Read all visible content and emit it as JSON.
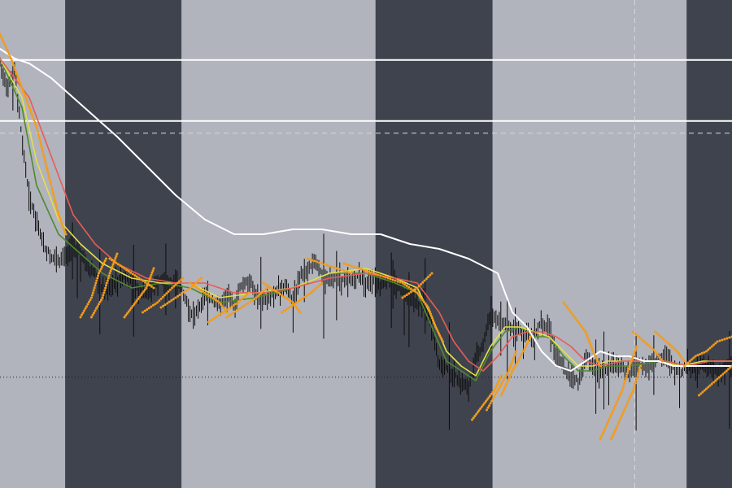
{
  "colors": {
    "band_light": "#b1b3bd",
    "band_dark": "#3f434e",
    "candle": "#0b0b0b",
    "ma_green": "#4f8a2b",
    "ma_yellow": "#e3e04a",
    "ma_red": "#ea5b56",
    "ma_white": "#ffffff",
    "sar_orange": "#f39c1b",
    "level_white": "#ffffff",
    "grid_dashed": "#d8dae0",
    "dotted_level": "#1a1a1a"
  },
  "chart_data": {
    "type": "line",
    "title": "",
    "xlabel": "",
    "ylabel": "",
    "xlim": [
      0,
      100
    ],
    "ylim": [
      0,
      100
    ],
    "grid": false,
    "session_bands": [
      {
        "start": 0,
        "end": 8.9,
        "shade": "light"
      },
      {
        "start": 8.9,
        "end": 24.8,
        "shade": "dark"
      },
      {
        "start": 24.8,
        "end": 51.3,
        "shade": "light"
      },
      {
        "start": 51.3,
        "end": 67.3,
        "shade": "dark"
      },
      {
        "start": 67.3,
        "end": 93.8,
        "shade": "light"
      },
      {
        "start": 93.8,
        "end": 100,
        "shade": "dark"
      }
    ],
    "levels": [
      {
        "y": 87.7,
        "style": "solid"
      },
      {
        "y": 75.2,
        "style": "solid"
      },
      {
        "y": 72.7,
        "style": "dashed"
      },
      {
        "y": 22.7,
        "style": "dotted"
      }
    ],
    "vertical_markers": [
      86.7
    ],
    "price": {
      "x": [
        0,
        1,
        2,
        3,
        4,
        5,
        6,
        7,
        8,
        9,
        10,
        11,
        12,
        13,
        14,
        15,
        16,
        17,
        18,
        19,
        20,
        21,
        22,
        23,
        24,
        25,
        26,
        27,
        28,
        29,
        30,
        31,
        32,
        33,
        34,
        35,
        36,
        37,
        38,
        39,
        40,
        41,
        42,
        43,
        44,
        45,
        46,
        47,
        48,
        49,
        50,
        51,
        52,
        53,
        54,
        55,
        56,
        57,
        58,
        59,
        60,
        61,
        62,
        63,
        64,
        65,
        66,
        67,
        68,
        69,
        70,
        71,
        72,
        73,
        74,
        75,
        76,
        77,
        78,
        79,
        80,
        81,
        82,
        83,
        84,
        85,
        86,
        87,
        88,
        89,
        90,
        91,
        92,
        93,
        94,
        95,
        96,
        97,
        98,
        99,
        100
      ],
      "y": [
        88,
        82,
        86,
        72,
        60,
        55,
        50,
        48,
        47,
        48,
        50,
        49,
        46,
        44,
        41,
        42,
        43,
        44,
        43,
        41,
        40,
        42,
        43,
        42,
        43,
        41,
        36,
        37,
        40,
        39,
        38,
        40,
        38,
        42,
        43,
        40,
        39,
        40,
        41,
        42,
        39,
        44,
        45,
        47,
        44,
        43,
        44,
        43,
        43,
        44,
        43,
        43,
        42,
        43,
        42,
        41,
        40,
        38,
        39,
        33,
        26,
        25,
        24,
        22,
        21,
        27,
        30,
        36,
        35,
        34,
        33,
        33,
        32,
        31,
        35,
        33,
        28,
        25,
        24,
        22,
        27,
        26,
        24,
        25,
        26,
        25,
        24,
        26,
        25,
        26,
        27,
        28,
        25,
        24,
        26,
        24,
        26,
        25,
        24,
        25,
        26
      ]
    },
    "series": [
      {
        "key": "ma_green",
        "x": [
          0,
          3,
          5,
          8,
          11,
          14,
          18,
          22,
          26,
          30,
          35,
          40,
          45,
          50,
          54,
          57,
          59,
          61,
          63,
          65,
          67,
          69,
          71,
          73,
          75,
          77,
          79,
          81,
          83,
          86,
          90,
          93,
          96,
          100
        ],
        "y": [
          88,
          78,
          62,
          52,
          48,
          44,
          41,
          42,
          41,
          38,
          39,
          41,
          44,
          44,
          42,
          40,
          33,
          26,
          24,
          22,
          28,
          32,
          33,
          31,
          31,
          27,
          24,
          24,
          25,
          25,
          26,
          25,
          26,
          26
        ]
      },
      {
        "key": "ma_yellow",
        "x": [
          0,
          3,
          5,
          8,
          11,
          14,
          18,
          22,
          26,
          30,
          35,
          40,
          45,
          50,
          54,
          57,
          59,
          61,
          63,
          65,
          67,
          69,
          71,
          73,
          75,
          77,
          79,
          81,
          83,
          86,
          90,
          93,
          96,
          100
        ],
        "y": [
          88,
          80,
          67,
          55,
          50,
          46,
          43,
          42,
          42,
          39,
          40,
          41,
          44,
          45,
          43,
          41,
          35,
          28,
          25,
          23,
          29,
          33,
          33,
          32,
          31,
          28,
          25,
          25,
          26,
          26,
          26,
          25,
          26,
          26
        ]
      },
      {
        "key": "ma_red",
        "x": [
          0,
          4,
          7,
          10,
          13,
          16,
          20,
          24,
          28,
          32,
          36,
          40,
          45,
          50,
          54,
          57,
          60,
          62,
          64,
          66,
          68,
          70,
          72,
          74,
          76,
          78,
          80,
          82,
          85,
          88,
          91,
          94,
          97,
          100
        ],
        "y": [
          88,
          80,
          68,
          56,
          50,
          46,
          43,
          42,
          42,
          40,
          40,
          41,
          43,
          44,
          43,
          42,
          36,
          30,
          26,
          24,
          27,
          31,
          32,
          32,
          31,
          29,
          26,
          25,
          26,
          26,
          26,
          25,
          26,
          26
        ]
      },
      {
        "key": "ma_white",
        "x": [
          0,
          2,
          4,
          7,
          10,
          13,
          16,
          20,
          24,
          28,
          32,
          36,
          40,
          44,
          48,
          52,
          56,
          60,
          64,
          68,
          70,
          72,
          74,
          76,
          78,
          80,
          82,
          84,
          86,
          88,
          90,
          92,
          94,
          96,
          98,
          100
        ],
        "y": [
          90,
          88,
          87,
          84,
          80,
          76,
          72,
          66,
          60,
          55,
          52,
          52,
          53,
          53,
          52,
          52,
          50,
          49,
          47,
          44,
          36,
          33,
          28,
          25,
          24,
          26,
          28,
          27,
          27,
          26,
          26,
          25,
          25,
          25,
          25,
          25
        ]
      }
    ],
    "sar_arcs": [
      [
        [
          0,
          93
        ],
        [
          1.5,
          88
        ],
        [
          3,
          82
        ],
        [
          5,
          74
        ],
        [
          6,
          68
        ],
        [
          7,
          62
        ],
        [
          8,
          56
        ],
        [
          9,
          52
        ]
      ],
      [
        [
          11,
          35
        ],
        [
          12.5,
          39
        ],
        [
          13.5,
          44
        ],
        [
          14.5,
          47
        ]
      ],
      [
        [
          12.5,
          35
        ],
        [
          14,
          39
        ],
        [
          15,
          44
        ],
        [
          16,
          48
        ]
      ],
      [
        [
          15,
          47
        ],
        [
          17,
          45
        ],
        [
          19,
          43
        ],
        [
          21,
          41
        ]
      ],
      [
        [
          17,
          35
        ],
        [
          18.5,
          38
        ],
        [
          20,
          41
        ],
        [
          21,
          45
        ]
      ],
      [
        [
          19.5,
          36
        ],
        [
          21.5,
          38
        ],
        [
          23.5,
          41
        ],
        [
          25,
          43
        ]
      ],
      [
        [
          22,
          37
        ],
        [
          24,
          39
        ],
        [
          26,
          41
        ],
        [
          27.5,
          43
        ]
      ],
      [
        [
          26,
          42
        ],
        [
          28,
          40
        ],
        [
          30,
          38
        ],
        [
          31,
          36
        ]
      ],
      [
        [
          28.5,
          34
        ],
        [
          30.5,
          36
        ],
        [
          32.5,
          38
        ],
        [
          34,
          40
        ]
      ],
      [
        [
          31,
          35
        ],
        [
          33,
          37
        ],
        [
          35,
          39
        ],
        [
          36.5,
          41
        ]
      ],
      [
        [
          36,
          42
        ],
        [
          38,
          40
        ],
        [
          40,
          38
        ],
        [
          41,
          36
        ]
      ],
      [
        [
          38.5,
          36
        ],
        [
          40.5,
          38
        ],
        [
          42.5,
          40
        ],
        [
          44,
          42
        ]
      ],
      [
        [
          42,
          47
        ],
        [
          44,
          46
        ],
        [
          46,
          45
        ],
        [
          48,
          44
        ]
      ],
      [
        [
          47,
          46
        ],
        [
          49,
          45
        ],
        [
          51,
          44
        ],
        [
          53,
          43
        ],
        [
          55,
          42
        ],
        [
          57,
          40
        ],
        [
          58.5,
          37
        ],
        [
          59.5,
          33
        ],
        [
          60.5,
          30
        ]
      ],
      [
        [
          55,
          39
        ],
        [
          57,
          41
        ],
        [
          59,
          44
        ]
      ],
      [
        [
          64.5,
          14
        ],
        [
          66,
          17
        ],
        [
          67.5,
          20
        ],
        [
          68.5,
          23
        ]
      ],
      [
        [
          66.5,
          16
        ],
        [
          68,
          20
        ],
        [
          69.5,
          24
        ],
        [
          70.5,
          28
        ]
      ],
      [
        [
          68.5,
          19
        ],
        [
          70,
          24
        ],
        [
          71.5,
          28
        ],
        [
          72.5,
          31
        ]
      ],
      [
        [
          77,
          38
        ],
        [
          78.5,
          35
        ],
        [
          80,
          32
        ],
        [
          81,
          28
        ],
        [
          82,
          25
        ]
      ],
      [
        [
          82,
          10
        ],
        [
          83.5,
          15
        ],
        [
          85,
          20
        ],
        [
          86,
          25
        ],
        [
          87,
          29
        ]
      ],
      [
        [
          83.5,
          10
        ],
        [
          85,
          15
        ],
        [
          86.5,
          20
        ],
        [
          87.5,
          25
        ]
      ],
      [
        [
          86.5,
          32
        ],
        [
          88,
          30
        ],
        [
          89.5,
          28
        ],
        [
          90.5,
          26
        ]
      ],
      [
        [
          89.5,
          32
        ],
        [
          91,
          30
        ],
        [
          92.5,
          28
        ],
        [
          93.5,
          26
        ]
      ],
      [
        [
          93.5,
          25
        ],
        [
          95,
          27
        ],
        [
          96.5,
          28
        ],
        [
          98,
          30
        ],
        [
          100,
          31
        ]
      ],
      [
        [
          95.5,
          19
        ],
        [
          97,
          21
        ],
        [
          98.5,
          23
        ],
        [
          100,
          25
        ]
      ]
    ]
  }
}
